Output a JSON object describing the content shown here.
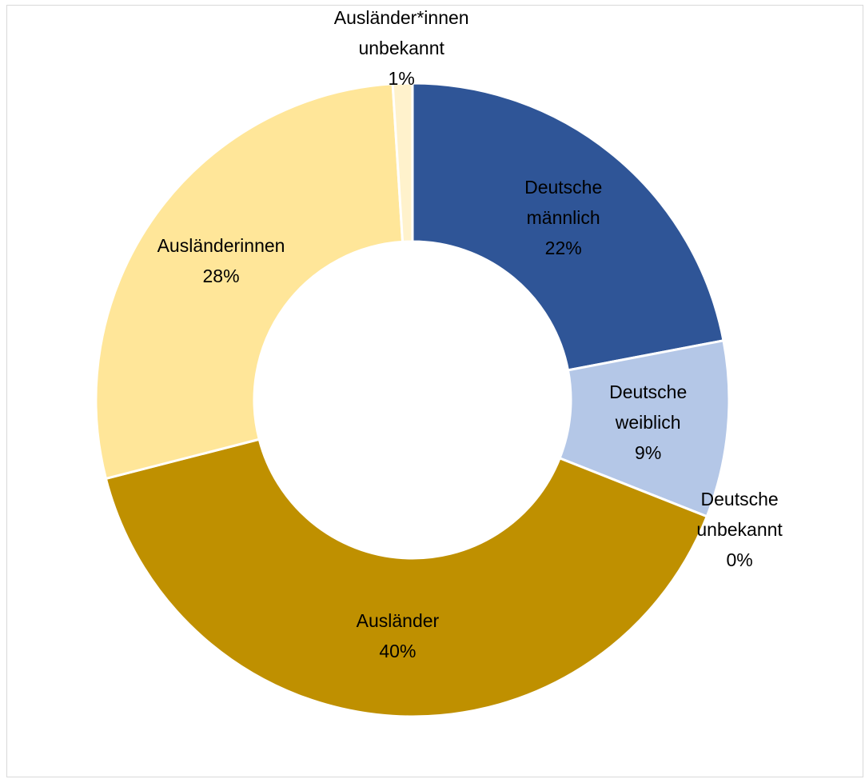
{
  "chart_data": {
    "type": "donut",
    "categories": [
      "Deutsche männlich",
      "Deutsche weiblich",
      "Deutsche unbekannt",
      "Ausländer",
      "Ausländerinnen",
      "Ausländer*innen unbekannt"
    ],
    "values": [
      22,
      9,
      0,
      40,
      28,
      1
    ],
    "value_labels": [
      "22%",
      "9%",
      "0%",
      "40%",
      "28%",
      "1%"
    ],
    "colors": [
      "#2f5597",
      "#b4c7e7",
      "#8faadc",
      "#bf9000",
      "#ffe699",
      "#fff2cc"
    ]
  }
}
